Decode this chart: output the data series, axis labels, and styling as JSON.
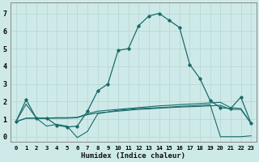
{
  "xlabel": "Humidex (Indice chaleur)",
  "bg_color": "#ceeae8",
  "grid_color": "#b8d8d6",
  "line_color": "#1a6b6b",
  "xlim": [
    -0.5,
    23.5
  ],
  "ylim": [
    -0.3,
    7.6
  ],
  "xticks": [
    0,
    1,
    2,
    3,
    4,
    5,
    6,
    7,
    8,
    9,
    10,
    11,
    12,
    13,
    14,
    15,
    16,
    17,
    18,
    19,
    20,
    21,
    22,
    23
  ],
  "yticks": [
    0,
    1,
    2,
    3,
    4,
    5,
    6,
    7
  ],
  "curve_main_x": [
    0,
    1,
    2,
    3,
    4,
    5,
    6,
    7,
    8,
    9,
    10,
    11,
    12,
    13,
    14,
    15,
    16,
    17,
    18,
    19,
    20,
    21,
    22,
    23
  ],
  "curve_main_y": [
    0.85,
    2.1,
    1.05,
    1.05,
    0.65,
    0.55,
    0.6,
    1.45,
    2.6,
    3.0,
    4.9,
    5.0,
    6.3,
    6.85,
    7.0,
    6.6,
    6.2,
    4.1,
    3.3,
    2.05,
    1.65,
    1.6,
    2.25,
    0.75
  ],
  "curve_zigzag_x": [
    0,
    1,
    2,
    3,
    4,
    5,
    6,
    7,
    8,
    9,
    10,
    11,
    12,
    13,
    14,
    15,
    16,
    17,
    18,
    19,
    20,
    21,
    22,
    23
  ],
  "curve_zigzag_y": [
    0.85,
    1.85,
    1.05,
    0.6,
    0.7,
    0.6,
    -0.05,
    0.3,
    1.3,
    1.4,
    1.5,
    1.55,
    1.6,
    1.62,
    1.65,
    1.68,
    1.72,
    1.75,
    1.78,
    1.82,
    0.0,
    0.0,
    0.0,
    0.05
  ],
  "curve_upper_flat_x": [
    0,
    1,
    2,
    3,
    4,
    5,
    6,
    7,
    8,
    9,
    10,
    11,
    12,
    13,
    14,
    15,
    16,
    17,
    18,
    19,
    20,
    21,
    22,
    23
  ],
  "curve_upper_flat_y": [
    0.85,
    1.05,
    1.05,
    1.05,
    1.08,
    1.08,
    1.1,
    1.3,
    1.45,
    1.5,
    1.55,
    1.6,
    1.65,
    1.7,
    1.75,
    1.78,
    1.82,
    1.85,
    1.88,
    1.92,
    1.95,
    1.65,
    1.6,
    0.75
  ],
  "curve_lower_flat_x": [
    0,
    1,
    2,
    3,
    4,
    5,
    6,
    7,
    8,
    9,
    10,
    11,
    12,
    13,
    14,
    15,
    16,
    17,
    18,
    19,
    20,
    21,
    22,
    23
  ],
  "curve_lower_flat_y": [
    0.85,
    1.05,
    1.05,
    1.05,
    1.05,
    1.05,
    1.08,
    1.25,
    1.35,
    1.4,
    1.45,
    1.5,
    1.55,
    1.58,
    1.62,
    1.65,
    1.68,
    1.7,
    1.72,
    1.75,
    1.78,
    1.55,
    1.55,
    0.75
  ]
}
